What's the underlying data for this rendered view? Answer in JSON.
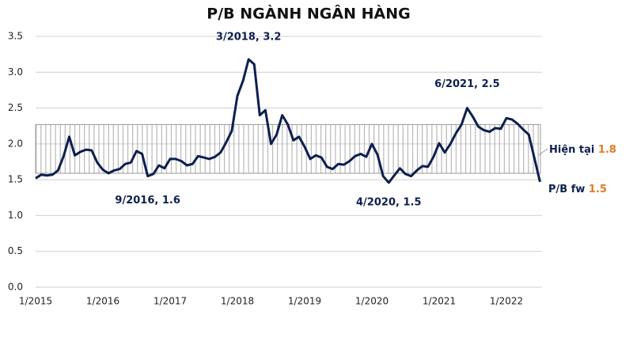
{
  "chart_data": {
    "type": "line",
    "title": "P/B NGÀNH NGÂN HÀNG",
    "x": [
      "1/2015",
      null,
      null,
      null,
      null,
      null,
      null,
      null,
      null,
      null,
      null,
      null,
      "1/2016",
      null,
      null,
      null,
      null,
      null,
      null,
      null,
      null,
      null,
      null,
      null,
      "1/2017",
      null,
      null,
      null,
      null,
      null,
      null,
      null,
      null,
      null,
      null,
      null,
      "1/2018",
      null,
      null,
      null,
      null,
      null,
      null,
      null,
      null,
      null,
      null,
      null,
      "1/2019",
      null,
      null,
      null,
      null,
      null,
      null,
      null,
      null,
      null,
      null,
      null,
      "1/2020",
      null,
      null,
      null,
      null,
      null,
      null,
      null,
      null,
      null,
      null,
      null,
      "1/2021",
      null,
      null,
      null,
      null,
      null,
      null,
      null,
      null,
      null,
      null,
      null,
      "1/2022",
      null,
      null,
      null,
      null,
      null,
      null
    ],
    "series": [
      {
        "name": "P/B",
        "color": "#0d1f4f",
        "values": [
          1.52,
          1.57,
          1.56,
          1.57,
          1.63,
          1.83,
          2.1,
          1.84,
          1.89,
          1.92,
          1.91,
          1.74,
          1.64,
          1.59,
          1.63,
          1.65,
          1.72,
          1.74,
          1.9,
          1.86,
          1.55,
          1.58,
          1.7,
          1.66,
          1.79,
          1.79,
          1.76,
          1.7,
          1.72,
          1.83,
          1.81,
          1.79,
          1.82,
          1.88,
          2.02,
          2.18,
          2.67,
          2.88,
          3.18,
          3.11,
          2.4,
          2.47,
          2.0,
          2.13,
          2.4,
          2.27,
          2.05,
          2.1,
          1.96,
          1.79,
          1.84,
          1.81,
          1.68,
          1.65,
          1.72,
          1.71,
          1.76,
          1.83,
          1.86,
          1.82,
          2.0,
          1.85,
          1.55,
          1.46,
          1.56,
          1.66,
          1.58,
          1.55,
          1.63,
          1.69,
          1.68,
          1.82,
          2.01,
          1.88,
          2.0,
          2.15,
          2.27,
          2.5,
          2.38,
          2.24,
          2.19,
          2.17,
          2.22,
          2.21,
          2.36,
          2.34,
          2.28,
          2.2,
          2.13,
          1.8,
          1.47
        ]
      }
    ],
    "band": [
      1.59,
      2.27
    ],
    "band_color": "#999999",
    "ylim": [
      0,
      3.5
    ],
    "yticks": [
      {
        "value": 0,
        "label": "0.0"
      },
      0.5,
      {
        "value": 1,
        "label": "1.0"
      },
      1.5,
      {
        "value": 2,
        "label": "2.0"
      },
      2.5,
      {
        "value": 3,
        "label": "3.0"
      },
      3.5
    ],
    "grid": true,
    "annotations": [
      {
        "text": "3/2018, 3.2",
        "index": 38
      },
      {
        "text": "9/2016, 1.6",
        "index": 20
      },
      {
        "text": "4/2020, 1.5",
        "index": 63
      },
      {
        "text": "6/2021, 2.5",
        "index": 77
      }
    ],
    "current": {
      "label": "Hiện tại",
      "value": 1.8
    },
    "forward": {
      "label": "P/B fw",
      "value": 1.5
    },
    "highlight_color": "#e07b24"
  }
}
